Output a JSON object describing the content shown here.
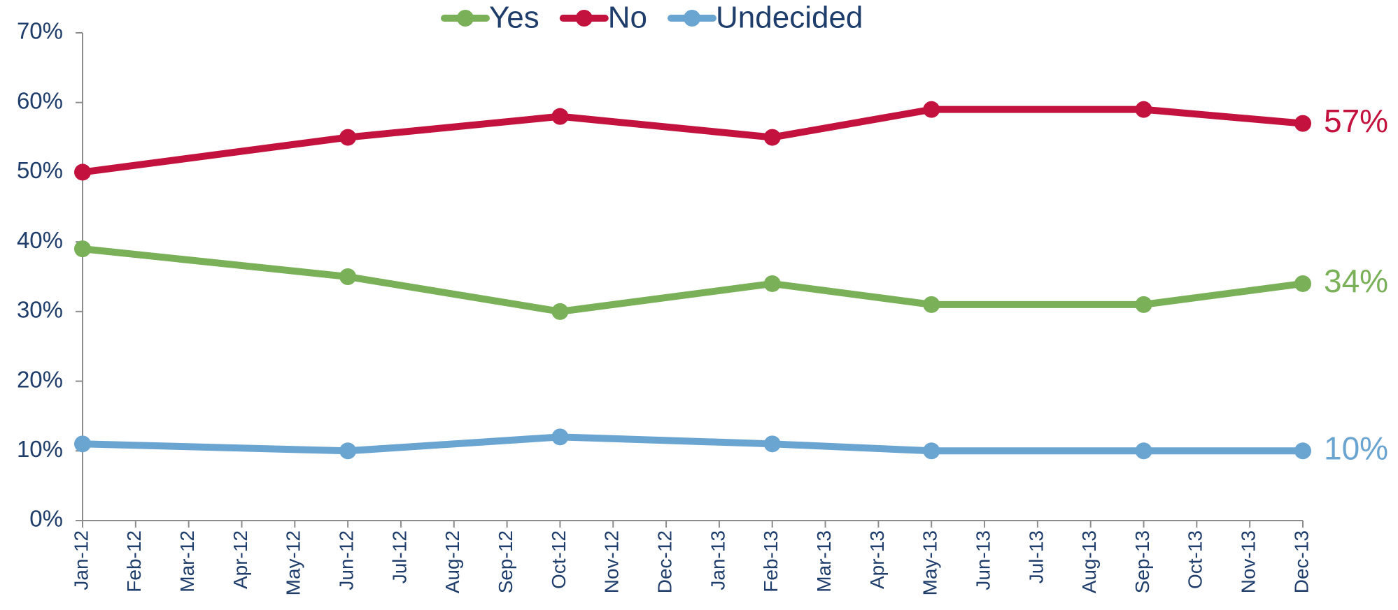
{
  "chart_data": {
    "type": "line",
    "x": [
      "Jan-12",
      "Jun-12",
      "Oct-12",
      "Feb-13",
      "May-13",
      "Sep-13",
      "Dec-13"
    ],
    "xticks": [
      "Jan-12",
      "Feb-12",
      "Mar-12",
      "Apr-12",
      "May-12",
      "Jun-12",
      "Jul-12",
      "Aug-12",
      "Sep-12",
      "Oct-12",
      "Nov-12",
      "Dec-12",
      "Jan-13",
      "Feb-13",
      "Mar-13",
      "Apr-13",
      "May-13",
      "Jun-13",
      "Jul-13",
      "Aug-13",
      "Sep-13",
      "Oct-13",
      "Nov-13",
      "Dec-13"
    ],
    "series": [
      {
        "name": "Yes",
        "color": "#79b058",
        "values": [
          39,
          35,
          30,
          34,
          31,
          31,
          34
        ],
        "value_labels": [
          null,
          null,
          null,
          null,
          null,
          null,
          "34%"
        ]
      },
      {
        "name": "No",
        "color": "#c3123d",
        "values": [
          50,
          55,
          58,
          55,
          59,
          59,
          57
        ],
        "value_labels": [
          null,
          null,
          null,
          null,
          null,
          null,
          "57%"
        ]
      },
      {
        "name": "Undecided",
        "color": "#6aa4d1",
        "values": [
          11,
          10,
          12,
          11,
          10,
          10,
          10
        ],
        "value_labels": [
          null,
          null,
          null,
          null,
          null,
          null,
          "10%"
        ]
      }
    ],
    "ylim": [
      0,
      70
    ],
    "yticks": [
      {
        "value": 0,
        "label": "0%"
      },
      {
        "value": 10,
        "label": "10%"
      },
      {
        "value": 20,
        "label": "20%"
      },
      {
        "value": 30,
        "label": "30%"
      },
      {
        "value": 40,
        "label": "40%"
      },
      {
        "value": 50,
        "label": "50%"
      },
      {
        "value": 60,
        "label": "60%"
      },
      {
        "value": 70,
        "label": "70%"
      }
    ],
    "grid": false,
    "legend": "top"
  }
}
